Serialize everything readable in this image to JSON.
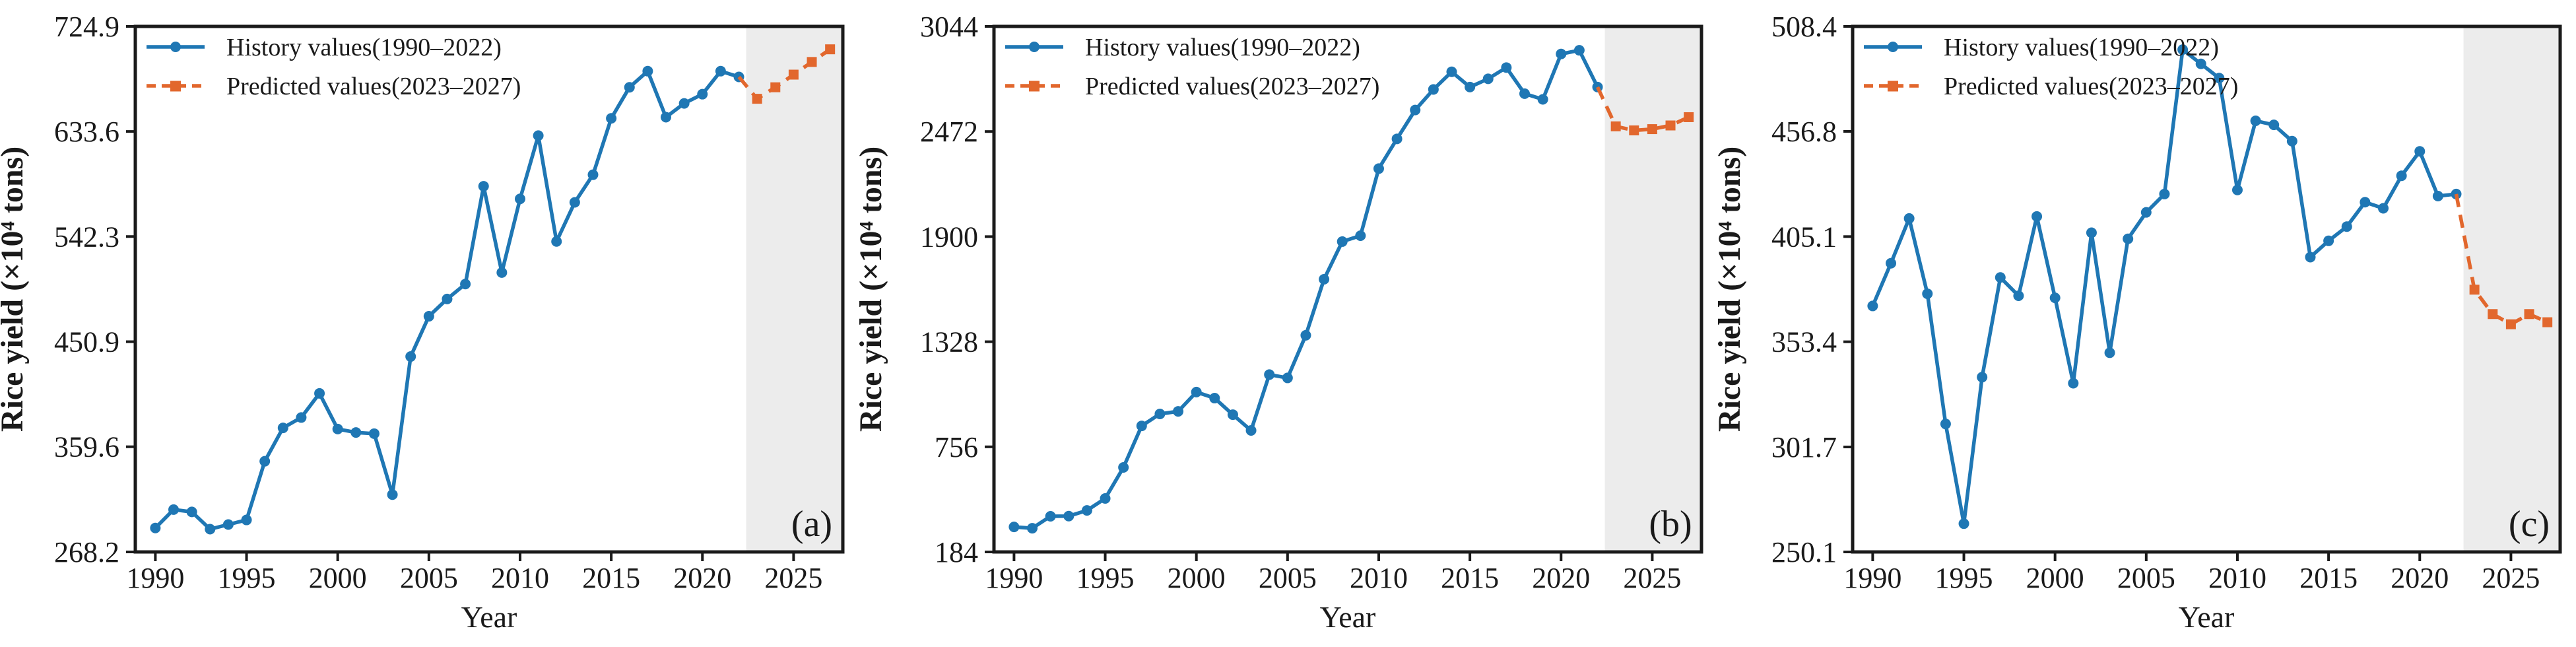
{
  "figure": {
    "colors": {
      "history": "#1f77b4",
      "predicted": "#e2672d",
      "prediction_band": "#ececec",
      "axis": "#1a1a1a",
      "text": "#1a1a1a",
      "background": "#ffffff"
    },
    "legend": {
      "history_label": "History values(1990–2022)",
      "predicted_label": "Predicted values(2023–2027)"
    }
  },
  "chart_data": [
    {
      "type": "line",
      "panel_label": "(a)",
      "xlabel": "Year",
      "ylabel": "Rice yield (×10⁴ tons)",
      "xlim": [
        1988.9,
        2027.7
      ],
      "ylim": [
        268.2,
        724.9
      ],
      "xticks": [
        1990,
        1995,
        2000,
        2005,
        2010,
        2015,
        2020,
        2025
      ],
      "ytick_values": [
        268.2,
        359.6,
        450.9,
        542.3,
        633.6,
        724.9
      ],
      "ytick_labels": [
        "268.2",
        "359.6",
        "450.9",
        "542.3",
        "633.6",
        "724.9"
      ],
      "grid": false,
      "legend_position": "upper-left",
      "prediction_band_start": 2022.4,
      "series": [
        {
          "name": "History values(1990–2022)",
          "role": "history",
          "x": [
            1990,
            1991,
            1992,
            1993,
            1994,
            1995,
            1996,
            1997,
            1998,
            1999,
            2000,
            2001,
            2002,
            2003,
            2004,
            2005,
            2006,
            2007,
            2008,
            2009,
            2010,
            2011,
            2012,
            2013,
            2014,
            2015,
            2016,
            2017,
            2018,
            2019,
            2020,
            2021,
            2022
          ],
          "values": [
            289,
            305,
            303,
            288,
            292,
            296,
            347,
            376,
            385,
            406,
            375,
            372,
            371,
            318,
            438,
            473,
            488,
            501,
            586,
            511,
            575,
            630,
            538,
            572,
            596,
            645,
            672,
            686,
            646,
            658,
            666,
            686,
            681
          ]
        },
        {
          "name": "Predicted values(2023–2027)",
          "role": "predicted",
          "x": [
            2023,
            2024,
            2025,
            2026,
            2027
          ],
          "values": [
            662,
            672,
            683,
            694,
            705
          ]
        }
      ]
    },
    {
      "type": "line",
      "panel_label": "(b)",
      "xlabel": "Year",
      "ylabel": "Rice yield (×10⁴ tons)",
      "xlim": [
        1988.9,
        2027.7
      ],
      "ylim": [
        184,
        3044
      ],
      "xticks": [
        1990,
        1995,
        2000,
        2005,
        2010,
        2015,
        2020,
        2025
      ],
      "ytick_values": [
        184,
        756,
        1328,
        1900,
        2472,
        3044
      ],
      "ytick_labels": [
        "184",
        "756",
        "1328",
        "1900",
        "2472",
        "3044"
      ],
      "grid": false,
      "legend_position": "upper-left",
      "prediction_band_start": 2022.4,
      "series": [
        {
          "name": "History values(1990–2022)",
          "role": "history",
          "x": [
            1990,
            1991,
            1992,
            1993,
            1994,
            1995,
            1996,
            1997,
            1998,
            1999,
            2000,
            2001,
            2002,
            2003,
            2004,
            2005,
            2006,
            2007,
            2008,
            2009,
            2010,
            2011,
            2012,
            2013,
            2014,
            2015,
            2016,
            2017,
            2018,
            2019,
            2020,
            2021,
            2022
          ],
          "values": [
            320,
            313,
            378,
            379,
            410,
            475,
            644,
            870,
            935,
            949,
            1054,
            1021,
            931,
            845,
            1149,
            1131,
            1363,
            1668,
            1873,
            1905,
            2270,
            2432,
            2589,
            2701,
            2797,
            2714,
            2759,
            2820,
            2678,
            2647,
            2894,
            2914,
            2714
          ]
        },
        {
          "name": "Predicted values(2023–2027)",
          "role": "predicted",
          "x": [
            2023,
            2024,
            2025,
            2026,
            2027
          ],
          "values": [
            2500,
            2478,
            2485,
            2505,
            2550
          ]
        }
      ]
    },
    {
      "type": "line",
      "panel_label": "(c)",
      "xlabel": "Year",
      "ylabel": "Rice yield (×10⁴ tons)",
      "xlim": [
        1988.9,
        2027.7
      ],
      "ylim": [
        250.1,
        508.4
      ],
      "xticks": [
        1990,
        1995,
        2000,
        2005,
        2010,
        2015,
        2020,
        2025
      ],
      "ytick_values": [
        250.1,
        301.7,
        353.4,
        405.1,
        456.8,
        508.4
      ],
      "ytick_labels": [
        "250.1",
        "301.7",
        "353.4",
        "405.1",
        "456.8",
        "508.4"
      ],
      "grid": false,
      "legend_position": "upper-left",
      "prediction_band_start": 2022.4,
      "series": [
        {
          "name": "History values(1990–2022)",
          "role": "history",
          "x": [
            1990,
            1991,
            1992,
            1993,
            1994,
            1995,
            1996,
            1997,
            1998,
            1999,
            2000,
            2001,
            2002,
            2003,
            2004,
            2005,
            2006,
            2007,
            2008,
            2009,
            2010,
            2011,
            2012,
            2013,
            2014,
            2015,
            2016,
            2017,
            2018,
            2019,
            2020,
            2021,
            2022
          ],
          "values": [
            371,
            392,
            414,
            377,
            313,
            264,
            336,
            385,
            376,
            415,
            375,
            333,
            407,
            348,
            404,
            417,
            426,
            497,
            490,
            483,
            428,
            462,
            460,
            452,
            395,
            403,
            410,
            422,
            419,
            435,
            447,
            425,
            426
          ]
        },
        {
          "name": "Predicted values(2023–2027)",
          "role": "predicted",
          "x": [
            2023,
            2024,
            2025,
            2026,
            2027
          ],
          "values": [
            379,
            367,
            362,
            367,
            363
          ]
        }
      ]
    }
  ]
}
